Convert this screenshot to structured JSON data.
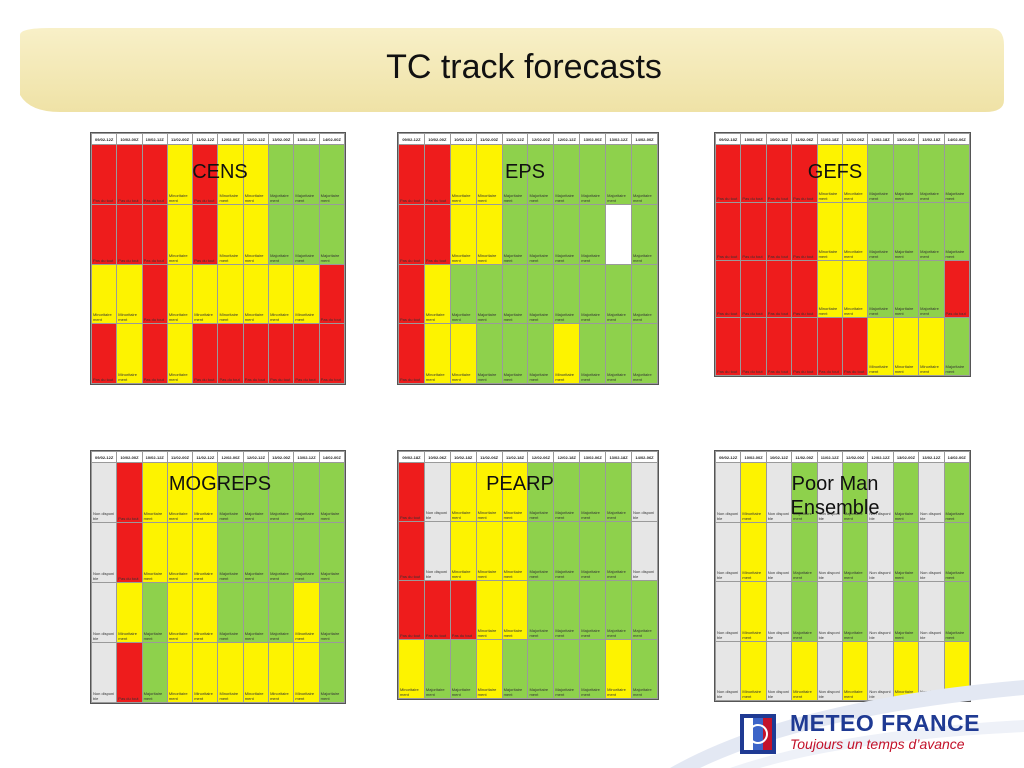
{
  "slide": {
    "title": "TC track forecasts"
  },
  "colors": {
    "red": "#ee1c1c",
    "yellow": "#fdf300",
    "green": "#8ed14c",
    "grey": "#e6e6e6",
    "banner": "#f3e8b0",
    "logo_blue": "#1f3a93",
    "logo_red": "#c3122a"
  },
  "legend_text": {
    "R": "Pas du tout",
    "Y": "Minoritaire ment",
    "G": "Majoritaire ment",
    "E": "Non disponible",
    "W": ""
  },
  "models": [
    {
      "name": "CENS",
      "headers": [
        "09/02-12Z",
        "10/02-00Z",
        "10/02-12Z",
        "11/02-00Z",
        "11/02-12Z",
        "12/02-00Z",
        "12/02-12Z",
        "13/02-00Z",
        "13/02-12Z",
        "14/02-00Z"
      ],
      "rows": [
        "RRRYRYYGGG",
        "RRRYRYYGGG",
        "YYRYYYYYYR",
        "RYRYRRRRRR"
      ]
    },
    {
      "name": "EPS",
      "headers": [
        "09/02-12Z",
        "10/02-00Z",
        "10/02-12Z",
        "11/02-00Z",
        "11/02-12Z",
        "12/02-00Z",
        "12/02-12Z",
        "13/02-00Z",
        "13/02-12Z",
        "14/02-00Z"
      ],
      "rows": [
        "RRYYGGGGGG",
        "RRYYGGGGWG",
        "RYGGGGGGGG",
        "RYYGGGYGGG"
      ]
    },
    {
      "name": "GEFS",
      "headers": [
        "09/02-18Z",
        "10/02-06Z",
        "10/02-18Z",
        "11/02-06Z",
        "11/02-18Z",
        "12/02-06Z",
        "12/02-18Z",
        "13/02-06Z",
        "13/02-18Z",
        "14/02-06Z"
      ],
      "rows": [
        "RRRRYYGGGG",
        "RRRRYYGGGG",
        "RRRRYYGGGR",
        "RRRRRRYYYG"
      ]
    },
    {
      "name": "MOGREPS",
      "headers": [
        "09/02-12Z",
        "10/02-00Z",
        "10/02-12Z",
        "11/02-00Z",
        "11/02-12Z",
        "12/02-00Z",
        "12/02-12Z",
        "13/02-00Z",
        "13/02-12Z",
        "14/02-00Z"
      ],
      "rows": [
        "ERYYYGGGGG",
        "ERYYYGGGGG",
        "EYGYYGGGYG",
        "ERGYYYYYYG"
      ]
    },
    {
      "name": "PEARP",
      "headers": [
        "09/02-18Z",
        "10/02-06Z",
        "10/02-18Z",
        "11/02-06Z",
        "11/02-18Z",
        "12/02-06Z",
        "12/02-18Z",
        "13/02-06Z",
        "13/02-18Z",
        "14/02-06Z"
      ],
      "rows": [
        "REYYYGGGGE",
        "REYYYGGGGE",
        "RRRYYGGGGG",
        "YGGYGGGGYG"
      ]
    },
    {
      "name": "Poor Man Ensemble",
      "headers": [
        "09/02-12Z",
        "10/02-00Z",
        "10/02-12Z",
        "11/02-00Z",
        "11/02-12Z",
        "12/02-00Z",
        "12/02-12Z",
        "13/02-00Z",
        "13/02-12Z",
        "14/02-00Z"
      ],
      "rows": [
        "EYEGEGEGEG",
        "EYEGEGEGEG",
        "EYEGEGEGEG",
        "EYEYEYEYEY"
      ]
    }
  ],
  "logo": {
    "name": "METEO FRANCE",
    "tagline": "Toujours un temps d’avance"
  }
}
